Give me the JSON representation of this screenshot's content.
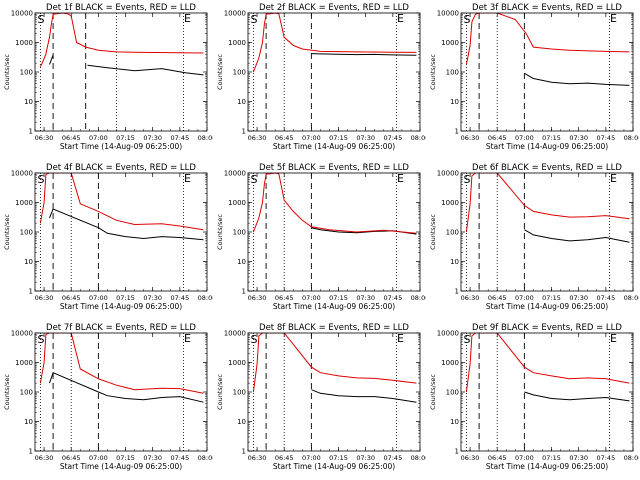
{
  "colors": {
    "background": "#ffffff",
    "events": "#000000",
    "lld": "#dd0000",
    "axes": "#000000"
  },
  "shared": {
    "xlabel": "Start Time (14-Aug-09 06:25:00)",
    "ylabel": "Counts/sec",
    "y_ticks": [
      "1",
      "10",
      "100",
      "1000",
      "10000"
    ],
    "x_ticks": [
      "06:30",
      "06:45",
      "07:00",
      "07:15",
      "07:30",
      "07:45",
      "08:00"
    ],
    "marker_s": "S",
    "marker_e": "E"
  },
  "chart_data": [
    {
      "type": "line",
      "title": "Det 1f BLACK = Events, RED = LLD",
      "ylim": [
        1,
        10000
      ],
      "xlim_min": [
        0,
        95
      ],
      "yscale": "log",
      "vlines_min": {
        "dotted": [
          3,
          45,
          82
        ],
        "dashed": [
          10,
          28
        ]
      },
      "series": [
        {
          "name": "Events",
          "color": "black",
          "x_min": [
            8,
            10,
            28,
            29,
            40,
            55,
            70,
            83,
            93
          ],
          "values": [
            180,
            380,
            null,
            170,
            140,
            110,
            130,
            95,
            80
          ]
        },
        {
          "name": "LLD",
          "color": "red",
          "x_min": [
            3,
            4,
            6,
            7,
            8,
            9,
            10,
            15,
            18,
            20,
            23,
            28,
            35,
            45,
            60,
            80,
            93
          ],
          "values": [
            150,
            200,
            400,
            800,
            1500,
            4000,
            9000,
            10000,
            9500,
            8000,
            1000,
            700,
            550,
            480,
            460,
            450,
            440
          ]
        }
      ]
    },
    {
      "type": "line",
      "title": "Det 2f BLACK = Events, RED = LLD",
      "ylim": [
        1,
        10000
      ],
      "xlim_min": [
        0,
        95
      ],
      "yscale": "log",
      "vlines_min": {
        "dotted": [
          3,
          20,
          82
        ],
        "dashed": [
          10,
          35
        ]
      },
      "series": [
        {
          "name": "Events",
          "color": "black",
          "x_min": [
            35,
            40,
            50,
            60,
            70,
            80,
            93
          ],
          "values": [
            420,
            410,
            400,
            390,
            395,
            380,
            370
          ]
        },
        {
          "name": "LLD",
          "color": "red",
          "x_min": [
            3,
            6,
            8,
            9,
            10,
            15,
            17,
            20,
            25,
            30,
            40,
            60,
            80,
            93
          ],
          "values": [
            100,
            300,
            1000,
            4000,
            9000,
            10000,
            9500,
            1500,
            800,
            600,
            500,
            480,
            470,
            460
          ]
        }
      ]
    },
    {
      "type": "line",
      "title": "Det 3f BLACK = Events, RED = LLD",
      "ylim": [
        1,
        10000
      ],
      "xlim_min": [
        0,
        95
      ],
      "yscale": "log",
      "vlines_min": {
        "dotted": [
          3,
          20,
          82
        ],
        "dashed": [
          10,
          35
        ]
      },
      "series": [
        {
          "name": "Events",
          "color": "black",
          "x_min": [
            35,
            40,
            50,
            60,
            70,
            80,
            93
          ],
          "values": [
            90,
            60,
            45,
            40,
            42,
            38,
            35
          ]
        },
        {
          "name": "LLD",
          "color": "red",
          "x_min": [
            3,
            5,
            6,
            8,
            10,
            20,
            30,
            36,
            40,
            50,
            60,
            80,
            93
          ],
          "values": [
            180,
            800,
            5000,
            9000,
            10000,
            10000,
            6000,
            2000,
            700,
            600,
            550,
            500,
            480
          ]
        }
      ]
    },
    {
      "type": "line",
      "title": "Det 4f BLACK = Events, RED = LLD",
      "ylim": [
        1,
        10000
      ],
      "xlim_min": [
        0,
        95
      ],
      "yscale": "log",
      "vlines_min": {
        "dotted": [
          3,
          20,
          82
        ],
        "dashed": [
          10,
          35
        ]
      },
      "series": [
        {
          "name": "Events",
          "color": "black",
          "x_min": [
            8,
            10,
            35,
            40,
            50,
            60,
            70,
            80,
            93
          ],
          "values": [
            300,
            600,
            140,
            90,
            70,
            60,
            70,
            65,
            55
          ]
        },
        {
          "name": "LLD",
          "color": "red",
          "x_min": [
            3,
            5,
            6,
            8,
            10,
            20,
            25,
            35,
            45,
            55,
            70,
            80,
            93
          ],
          "values": [
            200,
            1000,
            9000,
            10000,
            10000,
            10000,
            900,
            500,
            250,
            180,
            190,
            160,
            120
          ]
        }
      ]
    },
    {
      "type": "line",
      "title": "Det 5f BLACK = Events, RED = LLD",
      "ylim": [
        1,
        10000
      ],
      "xlim_min": [
        0,
        95
      ],
      "yscale": "log",
      "vlines_min": {
        "dotted": [
          3,
          20,
          82
        ],
        "dashed": [
          10,
          35
        ]
      },
      "series": [
        {
          "name": "Events",
          "color": "black",
          "x_min": [
            35,
            40,
            50,
            60,
            70,
            80,
            93
          ],
          "values": [
            140,
            120,
            100,
            95,
            105,
            110,
            85
          ]
        },
        {
          "name": "LLD",
          "color": "red",
          "x_min": [
            3,
            6,
            8,
            9,
            10,
            15,
            17,
            20,
            25,
            30,
            35,
            45,
            60,
            75,
            93
          ],
          "values": [
            100,
            300,
            1000,
            4000,
            9000,
            10000,
            9500,
            1200,
            500,
            250,
            150,
            120,
            100,
            115,
            90
          ]
        }
      ]
    },
    {
      "type": "line",
      "title": "Det 6f BLACK = Events, RED = LLD",
      "ylim": [
        1,
        10000
      ],
      "xlim_min": [
        0,
        95
      ],
      "yscale": "log",
      "vlines_min": {
        "dotted": [
          3,
          20,
          82
        ],
        "dashed": [
          10,
          35
        ]
      },
      "series": [
        {
          "name": "Events",
          "color": "black",
          "x_min": [
            35,
            40,
            50,
            60,
            70,
            80,
            93
          ],
          "values": [
            120,
            80,
            60,
            50,
            55,
            65,
            45
          ]
        },
        {
          "name": "LLD",
          "color": "red",
          "x_min": [
            3,
            5,
            6,
            8,
            10,
            20,
            35,
            40,
            50,
            60,
            70,
            80,
            93
          ],
          "values": [
            100,
            900,
            8000,
            10000,
            10000,
            10000,
            800,
            500,
            380,
            320,
            330,
            360,
            280
          ]
        }
      ]
    },
    {
      "type": "line",
      "title": "Det 7f BLACK = Events, RED = LLD",
      "ylim": [
        1,
        10000
      ],
      "xlim_min": [
        0,
        95
      ],
      "yscale": "log",
      "vlines_min": {
        "dotted": [
          3,
          20,
          82
        ],
        "dashed": [
          10,
          35
        ]
      },
      "series": [
        {
          "name": "Events",
          "color": "black",
          "x_min": [
            8,
            10,
            35,
            40,
            50,
            60,
            70,
            80,
            93
          ],
          "values": [
            200,
            450,
            100,
            75,
            60,
            55,
            65,
            70,
            45
          ]
        },
        {
          "name": "LLD",
          "color": "red",
          "x_min": [
            3,
            5,
            6,
            8,
            10,
            20,
            25,
            35,
            45,
            55,
            70,
            80,
            93
          ],
          "values": [
            200,
            1000,
            9000,
            10000,
            10000,
            10000,
            600,
            280,
            170,
            120,
            135,
            130,
            90
          ]
        }
      ]
    },
    {
      "type": "line",
      "title": "Det 8f BLACK = Events, RED = LLD",
      "ylim": [
        1,
        10000
      ],
      "xlim_min": [
        0,
        95
      ],
      "yscale": "log",
      "vlines_min": {
        "dotted": [
          3,
          20,
          82
        ],
        "dashed": [
          10,
          35
        ]
      },
      "series": [
        {
          "name": "Events",
          "color": "black",
          "x_min": [
            35,
            40,
            50,
            60,
            70,
            80,
            93
          ],
          "values": [
            120,
            90,
            75,
            70,
            70,
            60,
            45
          ]
        },
        {
          "name": "LLD",
          "color": "red",
          "x_min": [
            3,
            5,
            6,
            8,
            10,
            20,
            35,
            40,
            50,
            60,
            70,
            80,
            93
          ],
          "values": [
            100,
            900,
            8000,
            10000,
            10000,
            10000,
            700,
            450,
            350,
            300,
            290,
            250,
            200
          ]
        }
      ]
    },
    {
      "type": "line",
      "title": "Det 9f BLACK = Events, RED = LLD",
      "ylim": [
        1,
        10000
      ],
      "xlim_min": [
        0,
        95
      ],
      "yscale": "log",
      "vlines_min": {
        "dotted": [
          3,
          20,
          82
        ],
        "dashed": [
          10,
          35
        ]
      },
      "series": [
        {
          "name": "Events",
          "color": "black",
          "x_min": [
            35,
            40,
            50,
            60,
            70,
            80,
            93
          ],
          "values": [
            100,
            80,
            60,
            55,
            60,
            65,
            50
          ]
        },
        {
          "name": "LLD",
          "color": "red",
          "x_min": [
            3,
            5,
            6,
            8,
            10,
            20,
            35,
            40,
            50,
            60,
            70,
            80,
            93
          ],
          "values": [
            100,
            900,
            8000,
            10000,
            10000,
            10000,
            700,
            450,
            350,
            280,
            300,
            280,
            200
          ]
        }
      ]
    }
  ]
}
